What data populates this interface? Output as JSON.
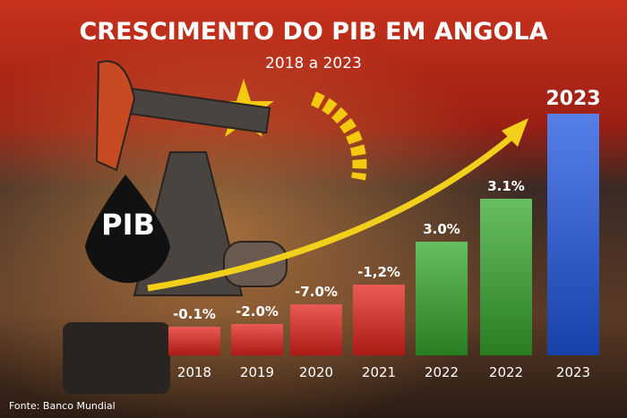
{
  "chart_data": {
    "type": "bar",
    "title": "CRESCIMENTO DO PIB EM ANGOLA",
    "subtitle": "2018 a 2023",
    "badge": "PIB",
    "source": "Fonte: Banco Mundial",
    "categories": [
      "2018",
      "2019",
      "2020",
      "2021",
      "2022",
      "2022",
      "2023"
    ],
    "values": [
      -0.1,
      -2.0,
      -7.0,
      -1.2,
      3.0,
      3.1,
      null
    ],
    "value_labels": [
      "-0.1%",
      "-2.0%",
      "-7.0%",
      "-1,2%",
      "3.0%",
      "3.1%",
      null
    ],
    "highlight_label": "2023",
    "colors": {
      "negative": "#e3241d",
      "positive": "#35a82c",
      "highlight": "#1f55e0"
    }
  }
}
